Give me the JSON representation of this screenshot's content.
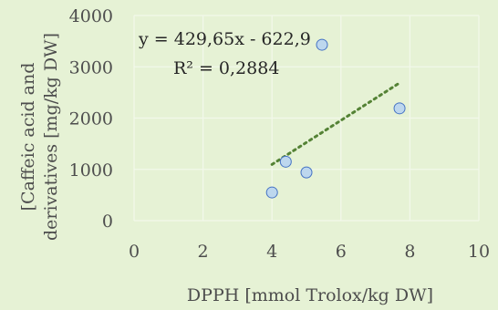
{
  "chart_data": {
    "type": "scatter",
    "xlabel": "DPPH [mmol Trolox/kg DW]",
    "ylabel_lines": [
      "[Caffeic acid and",
      "derivatives [mg/kg DW]"
    ],
    "xlim": [
      0,
      10
    ],
    "ylim": [
      0,
      4000
    ],
    "xticks": [
      "0",
      "2",
      "4",
      "6",
      "8",
      "10"
    ],
    "yticks": [
      "0",
      "1000",
      "2000",
      "3000",
      "4000"
    ],
    "grid": true,
    "legend": false,
    "points": [
      {
        "x": 4.0,
        "y": 550
      },
      {
        "x": 4.4,
        "y": 1150
      },
      {
        "x": 5.0,
        "y": 940
      },
      {
        "x": 5.45,
        "y": 3430
      },
      {
        "x": 7.7,
        "y": 2190
      }
    ],
    "trendline": {
      "type": "linear",
      "slope": 429.65,
      "intercept": -622.9,
      "x_from": 4.0,
      "x_to": 7.7,
      "equation_label": "y = 429,65x - 622,9",
      "r2_label": "R² = 0,2884"
    },
    "colors": {
      "background": "#e6f2d5",
      "gridline": "#f2f8ea",
      "marker_fill": "#bdd7ee",
      "marker_edge": "#4472c4",
      "trendline": "#548235",
      "text": "#4d4d4d"
    }
  }
}
